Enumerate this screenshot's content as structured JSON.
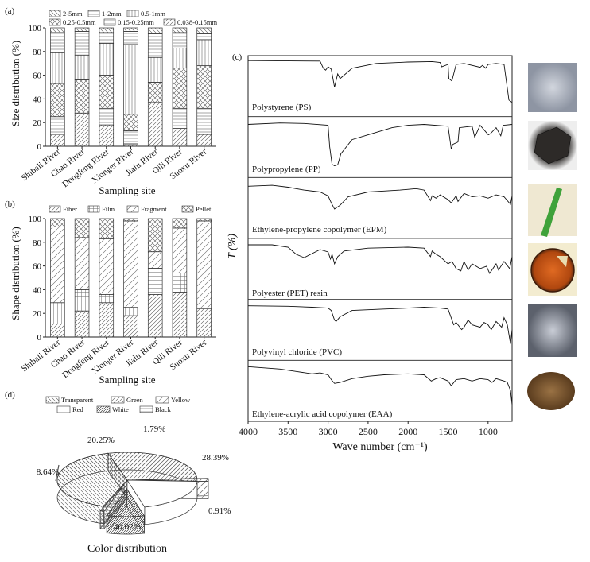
{
  "chart_data": [
    {
      "panel": "(a)",
      "type": "stacked-bar",
      "xlabel": "Sampling site",
      "ylabel": "Size distribution (%)",
      "ylim": [
        0,
        100
      ],
      "yticks": [
        0,
        20,
        40,
        60,
        80,
        100
      ],
      "categories": [
        "Shibali River",
        "Chao River",
        "Dongfeng River",
        "Xionger River",
        "Jialu River",
        "Qili River",
        "Suoxu River"
      ],
      "series": [
        {
          "name": "0.038-0.15mm",
          "values": [
            10,
            28,
            18,
            2,
            37,
            15,
            10
          ]
        },
        {
          "name": "0.15-0.25mm",
          "values": [
            15,
            0,
            14,
            11,
            0,
            17,
            22
          ]
        },
        {
          "name": "0.25-0.5mm",
          "values": [
            28,
            28,
            28,
            14,
            17,
            34,
            36
          ]
        },
        {
          "name": "0.5-1mm",
          "values": [
            26,
            21,
            27,
            59,
            21,
            17,
            22
          ]
        },
        {
          "name": "1-2mm",
          "values": [
            17,
            20,
            9,
            11,
            20,
            13,
            5
          ]
        },
        {
          "name": "2-5mm",
          "values": [
            4,
            3,
            4,
            3,
            5,
            4,
            5
          ]
        }
      ],
      "legend": [
        "2-5mm",
        "1-2mm",
        "0.5-1mm",
        "0.25-0.5mm",
        "0.15-0.25mm",
        "0.038-0.15mm"
      ]
    },
    {
      "panel": "(b)",
      "type": "stacked-bar",
      "xlabel": "Sampling site",
      "ylabel": "Shape distribution (%)",
      "ylim": [
        0,
        100
      ],
      "yticks": [
        0,
        20,
        40,
        60,
        80,
        100
      ],
      "categories": [
        "Shibali River",
        "Chao River",
        "Dongfeng River",
        "Xionger River",
        "Jialu River",
        "Qili River",
        "Suoxu River"
      ],
      "series": [
        {
          "name": "Fiber",
          "values": [
            11,
            22,
            29,
            18,
            36,
            38,
            24
          ]
        },
        {
          "name": "Film",
          "values": [
            18,
            18,
            7,
            7,
            22,
            16,
            0
          ]
        },
        {
          "name": "Fragment",
          "values": [
            64,
            44,
            47,
            73,
            14,
            38,
            74
          ]
        },
        {
          "name": "Pellet",
          "values": [
            7,
            16,
            17,
            2,
            28,
            8,
            2
          ]
        }
      ],
      "legend": [
        "Fiber",
        "Film",
        "Fragment",
        "Pellet"
      ]
    },
    {
      "panel": "(d)",
      "type": "pie",
      "title": "Color distribution",
      "legend": [
        "Transparent",
        "Green",
        "Yellow",
        "Red",
        "White",
        "Black"
      ],
      "slices": [
        {
          "name": "Transparent",
          "value": 40.02,
          "label": "40.02%"
        },
        {
          "name": "Green",
          "value": 28.39,
          "label": "28.39%"
        },
        {
          "name": "Yellow",
          "value": 1.79,
          "label": "1.79%"
        },
        {
          "name": "Red",
          "value": 20.25,
          "label": "20.25%"
        },
        {
          "name": "White",
          "value": 8.64,
          "label": "8.64%"
        },
        {
          "name": "Black",
          "value": 0.91,
          "label": "0.91%"
        }
      ]
    },
    {
      "panel": "(c)",
      "type": "line",
      "xlabel": "Wave number (cm⁻¹)",
      "ylabel": "T (%)",
      "xlim": [
        4000,
        700
      ],
      "xticks": [
        4000,
        3500,
        3000,
        2500,
        2000,
        1500,
        1000
      ],
      "series": [
        {
          "name": "Polystyrene (PS)",
          "x": [
            4000,
            3100,
            3060,
            3030,
            3000,
            2960,
            2920,
            2880,
            2850,
            2700,
            2400,
            2000,
            1700,
            1600,
            1580,
            1500,
            1490,
            1452,
            1400,
            1300,
            1100,
            1070,
            1030,
            1000,
            900,
            800,
            760,
            740,
            700
          ],
          "y": [
            2,
            3,
            18,
            22,
            15,
            20,
            58,
            30,
            40,
            18,
            8,
            5,
            4,
            6,
            15,
            10,
            40,
            45,
            10,
            8,
            16,
            12,
            18,
            10,
            8,
            10,
            60,
            85,
            90
          ]
        },
        {
          "name": "Polypropylene (PP)",
          "x": [
            4000,
            3600,
            3300,
            3000,
            2980,
            2950,
            2920,
            2880,
            2840,
            2700,
            2500,
            2200,
            2000,
            1800,
            1500,
            1460,
            1440,
            1376,
            1360,
            1200,
            1167,
            1100,
            997,
            973,
            900,
            841,
            810,
            700
          ],
          "y": [
            8,
            5,
            6,
            10,
            55,
            92,
            95,
            93,
            70,
            40,
            30,
            15,
            10,
            8,
            12,
            60,
            50,
            45,
            15,
            12,
            35,
            10,
            30,
            28,
            15,
            32,
            10,
            8
          ]
        },
        {
          "name": "Ethylene-propylene copolymer (EPM)",
          "x": [
            4000,
            3700,
            3500,
            3300,
            3100,
            3000,
            2960,
            2920,
            2850,
            2750,
            2500,
            2300,
            2100,
            1900,
            1800,
            1720,
            1700,
            1650,
            1600,
            1500,
            1460,
            1400,
            1376,
            1300,
            1200,
            1100,
            1000,
            900,
            800,
            720,
            700
          ],
          "y": [
            10,
            8,
            12,
            18,
            22,
            30,
            45,
            58,
            50,
            32,
            22,
            20,
            18,
            15,
            18,
            40,
            30,
            35,
            28,
            38,
            45,
            30,
            42,
            25,
            32,
            30,
            35,
            28,
            32,
            48,
            30
          ]
        },
        {
          "name": "Polyester (PET) resin",
          "x": [
            4000,
            3700,
            3500,
            3400,
            3300,
            3100,
            3000,
            2970,
            2950,
            2920,
            2880,
            2800,
            2500,
            2000,
            1800,
            1720,
            1700,
            1650,
            1600,
            1500,
            1450,
            1400,
            1340,
            1300,
            1250,
            1200,
            1100,
            1020,
            980,
            900,
            870,
            800,
            730,
            700
          ],
          "y": [
            5,
            5,
            10,
            25,
            32,
            15,
            20,
            35,
            25,
            45,
            30,
            18,
            12,
            10,
            12,
            30,
            18,
            25,
            30,
            45,
            40,
            55,
            60,
            40,
            58,
            45,
            55,
            50,
            65,
            45,
            58,
            40,
            55,
            30
          ]
        },
        {
          "name": "Polyvinyl chloride (PVC)",
          "x": [
            4000,
            3500,
            3200,
            3000,
            2960,
            2920,
            2900,
            2850,
            2700,
            2300,
            2000,
            1800,
            1600,
            1500,
            1430,
            1400,
            1330,
            1300,
            1250,
            1200,
            1100,
            1050,
            1000,
            960,
            900,
            830,
            800,
            760,
            720,
            700
          ],
          "y": [
            5,
            6,
            8,
            10,
            15,
            35,
            38,
            28,
            15,
            12,
            10,
            8,
            10,
            12,
            45,
            40,
            55,
            50,
            35,
            45,
            50,
            40,
            45,
            55,
            38,
            50,
            30,
            45,
            85,
            55
          ]
        },
        {
          "name": "Ethylene-acrylic acid copolymer (EAA)",
          "x": [
            4000,
            3600,
            3400,
            3200,
            3100,
            3000,
            2960,
            2920,
            2850,
            2700,
            2500,
            2300,
            2000,
            1800,
            1710,
            1650,
            1600,
            1500,
            1460,
            1400,
            1300,
            1200,
            1100,
            1000,
            950,
            900,
            800,
            760,
            720,
            700
          ],
          "y": [
            5,
            10,
            15,
            20,
            18,
            22,
            32,
            40,
            38,
            30,
            25,
            22,
            20,
            22,
            35,
            30,
            28,
            35,
            45,
            32,
            30,
            35,
            30,
            32,
            38,
            30,
            35,
            38,
            55,
            85
          ]
        }
      ]
    }
  ],
  "panels": {
    "a": {
      "tag": "(a)"
    },
    "b": {
      "tag": "(b)"
    },
    "c": {
      "tag": "(c)"
    },
    "d": {
      "tag": "(d)"
    }
  },
  "images": [
    {
      "name": "PS particle",
      "color": "#a6acb6"
    },
    {
      "name": "PP particle",
      "color": "#3d3a38"
    },
    {
      "name": "EPM particle",
      "color": "#3fa23a"
    },
    {
      "name": "PET particle",
      "color": "#c8581a"
    },
    {
      "name": "PVC particle",
      "color": "#8e939c"
    },
    {
      "name": "EAA particle",
      "color": "#7e5a32"
    }
  ]
}
